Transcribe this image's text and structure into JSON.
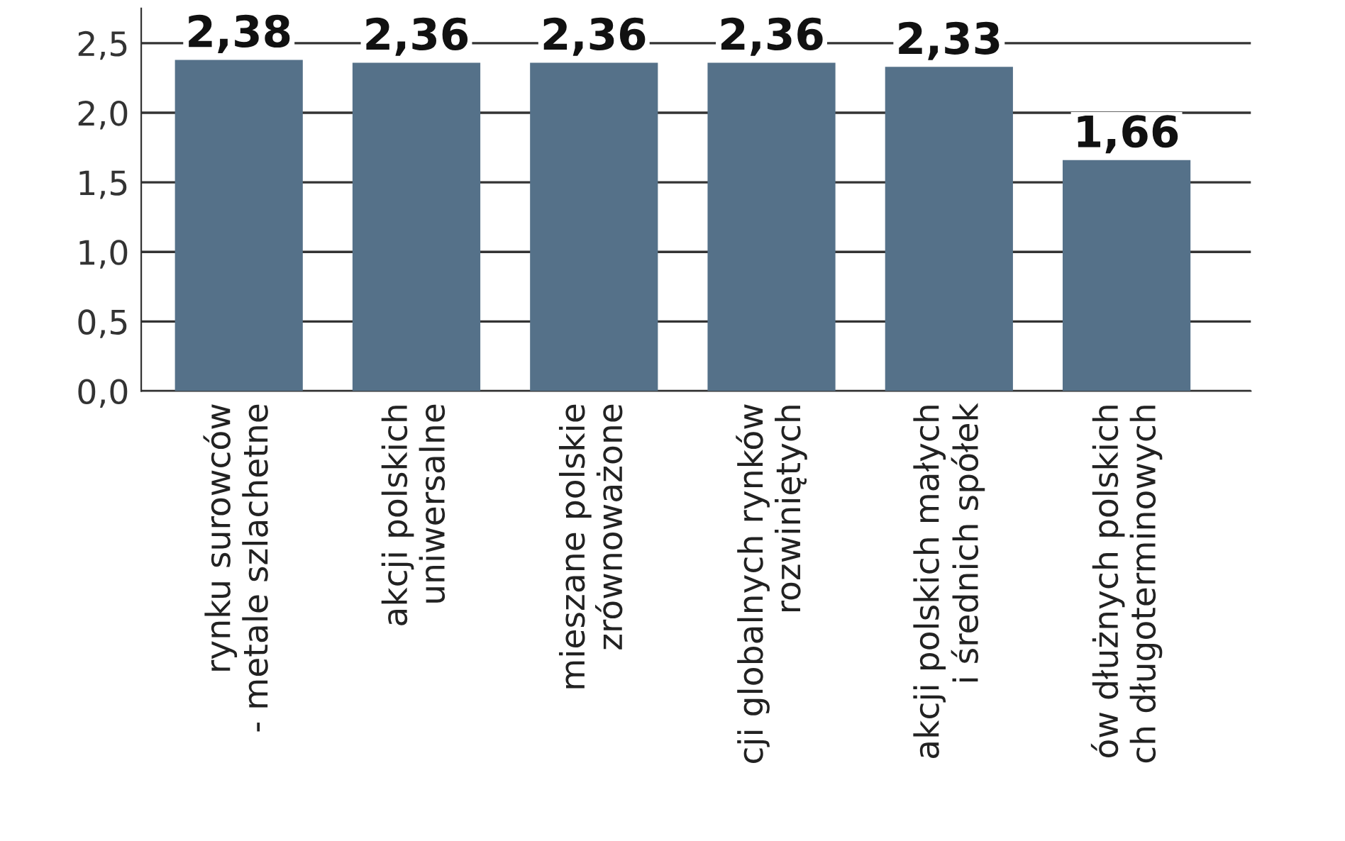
{
  "chart_data": {
    "type": "bar",
    "categories": [
      "rynku surowców\n- metale szlachetne",
      "akcji polskich\nuniwersalne",
      "mieszane polskie\nzrównoważone",
      "cji globalnych rynków\nrozwiniętych",
      "akcji polskich małych\ni średnich spółek",
      "ów dłużnych polskich\nch długoterminowych"
    ],
    "values": [
      2.38,
      2.36,
      2.36,
      2.36,
      2.33,
      1.66
    ],
    "value_labels": [
      "2,38",
      "2,36",
      "2,36",
      "2,36",
      "2,33",
      "1,66"
    ],
    "color": "#557189",
    "ylim": [
      0,
      2.75
    ],
    "yticks": [
      {
        "value": 0,
        "label": "0,0"
      },
      {
        "value": 0.5,
        "label": "0,5"
      },
      {
        "value": 1.0,
        "label": "1,0"
      },
      {
        "value": 1.5,
        "label": "1,5"
      },
      {
        "value": 2.0,
        "label": "2,0"
      },
      {
        "value": 2.5,
        "label": "2,5"
      }
    ],
    "grid": "y"
  }
}
